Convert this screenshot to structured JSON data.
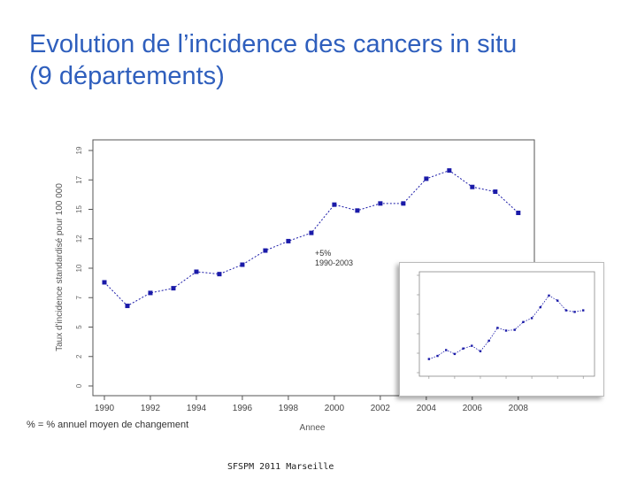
{
  "slide": {
    "title_line1": "Evolution de l’incidence des cancers in situ",
    "title_line2": "(9 départements)",
    "note": "% = % annuel moyen de changement",
    "footer": "SFSPM 2011 Marseille"
  },
  "chart_data": [
    {
      "type": "line",
      "x": [
        1990,
        1991,
        1992,
        1993,
        1994,
        1995,
        1996,
        1997,
        1998,
        1999,
        2000,
        2001,
        2002,
        2003,
        2004,
        2005,
        2006,
        2007,
        2008
      ],
      "y": [
        8.8,
        6.8,
        7.9,
        8.3,
        9.7,
        9.5,
        10.3,
        11.5,
        12.3,
        13.0,
        15.4,
        14.9,
        15.5,
        15.5,
        17.6,
        18.3,
        16.9,
        16.5,
        14.7
      ],
      "xlabel": "Annee",
      "ylabel": "Taux d'incidence standardisé pour 100 000",
      "xticks": [
        "1990",
        "1992",
        "1994",
        "1996",
        "1998",
        "2000",
        "2002",
        "2004",
        "2006",
        "2008"
      ],
      "yticks": [
        "0",
        "2",
        "5",
        "7",
        "10",
        "12",
        "15",
        "17",
        "19"
      ],
      "ylim": [
        0,
        20
      ],
      "xlim": [
        1989.5,
        2008.7
      ],
      "annotation": {
        "line1": "+5%",
        "line2": "1990-2003"
      },
      "color": "#1a1aa8"
    },
    {
      "type": "line",
      "x": [
        1990,
        1991,
        1992,
        1993,
        1994,
        1995,
        1996,
        1997,
        1998,
        1999,
        2000,
        2001,
        2002,
        2003,
        2004,
        2005,
        2006,
        2007,
        2008
      ],
      "y": [
        3.5,
        4.3,
        5.8,
        4.8,
        6.2,
        6.9,
        5.5,
        8.2,
        11.5,
        10.8,
        11.0,
        13.0,
        14.0,
        16.8,
        19.8,
        18.5,
        16.0,
        15.6,
        16.0
      ],
      "ylim": [
        0,
        25
      ],
      "xlim": [
        1989.5,
        2008.7
      ],
      "color": "#1a1aa8"
    }
  ]
}
